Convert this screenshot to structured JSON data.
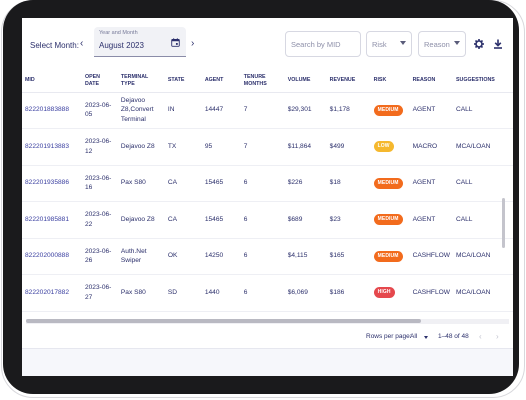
{
  "toolbar": {
    "select_month_label": "Select Month:",
    "month_field_label": "Year and Month",
    "month_value": "August 2023",
    "search_placeholder": "Search by MID",
    "risk_placeholder": "Risk",
    "reason_placeholder": "Reason",
    "icons": [
      "chevron-left-icon",
      "calendar-icon",
      "chevron-right-icon",
      "gear-icon",
      "download-icon"
    ]
  },
  "table": {
    "headers": [
      "MID",
      "OPEN DATE",
      "TERMINAL TYPE",
      "STATE",
      "AGENT",
      "TENURE MONTHS",
      "VOLUME",
      "REVENUE",
      "RISK",
      "REASON",
      "SUGGESTIONS"
    ],
    "rows": [
      {
        "mid": "822201883888",
        "open_date": "2023-06-05",
        "terminal": "Dejavoo Z8,Convert Terminal",
        "state": "IN",
        "agent": "14447",
        "tenure": "7",
        "volume": "$29,301",
        "revenue": "$1,178",
        "risk": "MEDIUM",
        "reason": "AGENT",
        "suggestion": "CALL"
      },
      {
        "mid": "822201913883",
        "open_date": "2023-06-12",
        "terminal": "Dejavoo Z8",
        "state": "TX",
        "agent": "95",
        "tenure": "7",
        "volume": "$11,864",
        "revenue": "$499",
        "risk": "LOW",
        "reason": "MACRO",
        "suggestion": "MCA/LOAN"
      },
      {
        "mid": "822201935886",
        "open_date": "2023-06-16",
        "terminal": "Pax S80",
        "state": "CA",
        "agent": "15465",
        "tenure": "6",
        "volume": "$226",
        "revenue": "$18",
        "risk": "MEDIUM",
        "reason": "AGENT",
        "suggestion": "CALL"
      },
      {
        "mid": "822201985881",
        "open_date": "2023-06-22",
        "terminal": "Dejavoo Z8",
        "state": "CA",
        "agent": "15465",
        "tenure": "6",
        "volume": "$689",
        "revenue": "$23",
        "risk": "MEDIUM",
        "reason": "AGENT",
        "suggestion": "CALL"
      },
      {
        "mid": "822202000888",
        "open_date": "2023-06-26",
        "terminal": "Auth.Net Swiper",
        "state": "OK",
        "agent": "14250",
        "tenure": "6",
        "volume": "$4,115",
        "revenue": "$165",
        "risk": "MEDIUM",
        "reason": "CASHFLOW",
        "suggestion": "MCA/LOAN"
      },
      {
        "mid": "822202017882",
        "open_date": "2023-06-27",
        "terminal": "Pax S80",
        "state": "SD",
        "agent": "1440",
        "tenure": "6",
        "volume": "$6,069",
        "revenue": "$186",
        "risk": "HIGH",
        "reason": "CASHFLOW",
        "suggestion": "MCA/LOAN"
      }
    ]
  },
  "risk_colors": {
    "MEDIUM": "#f26b1d",
    "LOW": "#f5b82e",
    "HIGH": "#e5484d"
  },
  "footer": {
    "rows_per_page_label": "Rows per page:",
    "rows_per_page_value": "All",
    "range_text": "1–48 of 48",
    "prev_icon": "chevron-left-icon",
    "next_icon": "chevron-right-icon"
  }
}
